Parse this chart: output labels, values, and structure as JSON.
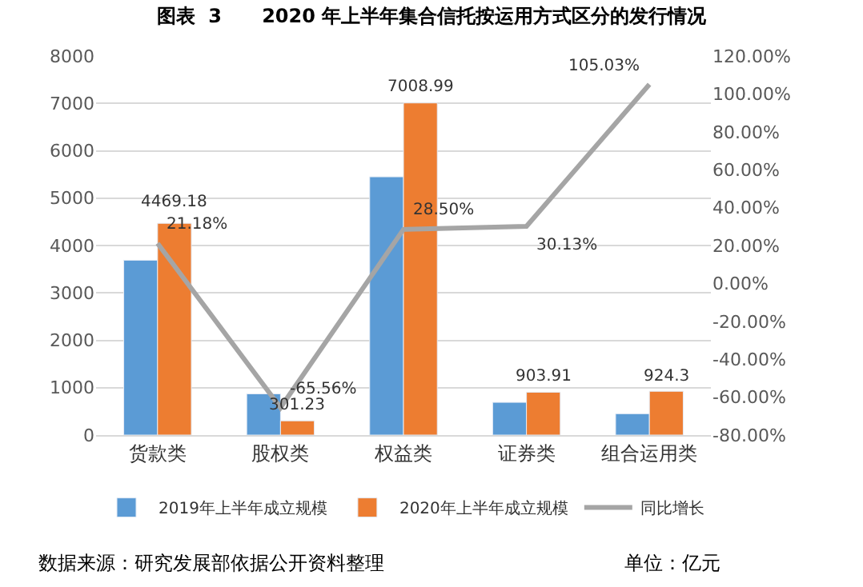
{
  "chart_data": {
    "type": "bar",
    "title": "图表  3      2020 年上半年集合信托按运用方式区分的发行情况",
    "categories": [
      "货款类",
      "股权类",
      "权益类",
      "证券类",
      "组合运用类"
    ],
    "series": [
      {
        "name": "2019年上半年成立规模",
        "color": "#5b9bd5",
        "values": [
          3690,
          870,
          5450,
          690,
          450
        ]
      },
      {
        "name": "2020年上半年成立规模",
        "color": "#ed7d31",
        "values": [
          4469.18,
          301.23,
          7008.99,
          903.91,
          924.3
        ],
        "value_labels": [
          "4469.18",
          "301.23",
          "7008.99",
          "903.91",
          "924.3"
        ]
      },
      {
        "name": "同比增长",
        "type": "line",
        "axis": "y2",
        "color": "#a5a5a5",
        "values": [
          21.18,
          -65.56,
          28.5,
          30.13,
          105.03
        ],
        "value_labels": [
          "21.18%",
          "-65.56%",
          "28.50%",
          "30.13%",
          "105.03%"
        ]
      }
    ],
    "ylim": [
      0,
      8000
    ],
    "yticks": [
      0,
      1000,
      2000,
      3000,
      4000,
      5000,
      6000,
      7000,
      8000
    ],
    "y2lim": [
      -80,
      120
    ],
    "y2ticks": [
      {
        "value": -80,
        "label": "-80.00%"
      },
      {
        "value": -60,
        "label": "-60.00%"
      },
      {
        "value": -40,
        "label": "-40.00%"
      },
      {
        "value": -20,
        "label": "-20.00%"
      },
      {
        "value": 0,
        "label": "0.00%"
      },
      {
        "value": 20,
        "label": "20.00%"
      },
      {
        "value": 40,
        "label": "40.00%"
      },
      {
        "value": 60,
        "label": "60.00%"
      },
      {
        "value": 80,
        "label": "80.00%"
      },
      {
        "value": 100,
        "label": "100.00%"
      },
      {
        "value": 120,
        "label": "120.00%"
      }
    ],
    "grid": "y",
    "legend": "bottom",
    "marker": "none",
    "line_style": "solid",
    "annotations": [
      "数据来源：研究发展部依据公开资料整理",
      "单位：亿元"
    ]
  }
}
